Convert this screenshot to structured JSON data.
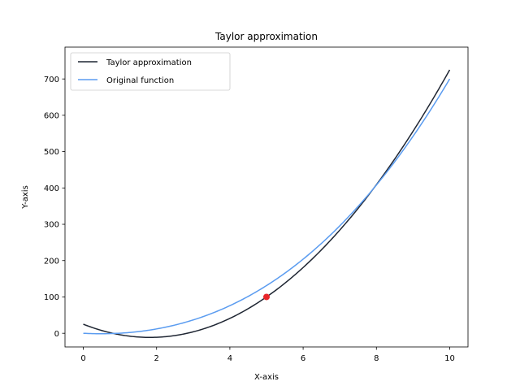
{
  "chart_data": {
    "type": "line",
    "title": "Taylor approximation",
    "xlabel": "X-axis",
    "ylabel": "Y-axis",
    "xlim": [
      -0.5,
      10.5
    ],
    "ylim": [
      -37.6,
      787.6
    ],
    "xticks": [
      0,
      2,
      4,
      6,
      8,
      10
    ],
    "yticks": [
      0,
      100,
      200,
      300,
      400,
      500,
      600,
      700
    ],
    "grid": false,
    "legend_position": "top-left",
    "series": [
      {
        "name": "Taylor approximation",
        "color": "#1f2633",
        "function": "taylor_quadratic",
        "coefficients": {
          "c0": 100,
          "c1": 70,
          "c2": 11
        },
        "x_start": 0,
        "x_end": 10
      },
      {
        "name": "Original function",
        "color": "#5b9cf0",
        "function": "polynomial",
        "coefficients": [
          0,
          -5,
          5,
          0.25
        ],
        "x_start": 0,
        "x_end": 10
      }
    ],
    "points": [
      {
        "x": 5,
        "y": 100,
        "color": "#e8262a"
      }
    ]
  }
}
